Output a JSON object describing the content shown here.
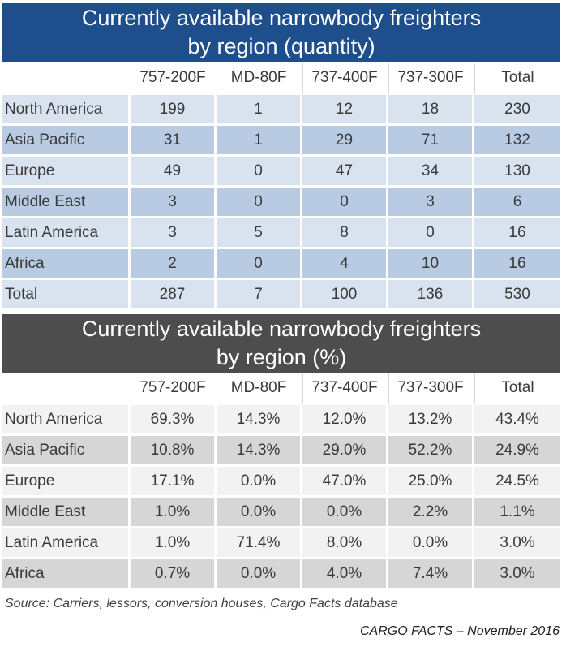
{
  "quantity": {
    "title_line1": "Currently available narrowbody freighters",
    "title_line2": "by region (quantity)",
    "columns": [
      "757-200F",
      "MD-80F",
      "737-400F",
      "737-300F",
      "Total"
    ],
    "rows": [
      {
        "region": "North America",
        "values": [
          "199",
          "1",
          "12",
          "18",
          "230"
        ]
      },
      {
        "region": "Asia Pacific",
        "values": [
          "31",
          "1",
          "29",
          "71",
          "132"
        ]
      },
      {
        "region": "Europe",
        "values": [
          "49",
          "0",
          "47",
          "34",
          "130"
        ]
      },
      {
        "region": "Middle East",
        "values": [
          "3",
          "0",
          "0",
          "3",
          "6"
        ]
      },
      {
        "region": "Latin America",
        "values": [
          "3",
          "5",
          "8",
          "0",
          "16"
        ]
      },
      {
        "region": "Africa",
        "values": [
          "2",
          "0",
          "4",
          "10",
          "16"
        ]
      },
      {
        "region": "Total",
        "values": [
          "287",
          "7",
          "100",
          "136",
          "530"
        ]
      }
    ]
  },
  "percent": {
    "title_line1": "Currently available narrowbody freighters",
    "title_line2": "by region (%)",
    "columns": [
      "757-200F",
      "MD-80F",
      "737-400F",
      "737-300F",
      "Total"
    ],
    "rows": [
      {
        "region": "North America",
        "values": [
          "69.3%",
          "14.3%",
          "12.0%",
          "13.2%",
          "43.4%"
        ]
      },
      {
        "region": "Asia Pacific",
        "values": [
          "10.8%",
          "14.3%",
          "29.0%",
          "52.2%",
          "24.9%"
        ]
      },
      {
        "region": "Europe",
        "values": [
          "17.1%",
          "0.0%",
          "47.0%",
          "25.0%",
          "24.5%"
        ]
      },
      {
        "region": "Middle East",
        "values": [
          "1.0%",
          "0.0%",
          "0.0%",
          "2.2%",
          "1.1%"
        ]
      },
      {
        "region": "Latin America",
        "values": [
          "1.0%",
          "71.4%",
          "8.0%",
          "0.0%",
          "3.0%"
        ]
      },
      {
        "region": "Africa",
        "values": [
          "0.7%",
          "0.0%",
          "4.0%",
          "7.4%",
          "3.0%"
        ]
      }
    ]
  },
  "source": "Source: Carriers, lessors, conversion houses, Cargo Facts database",
  "credit": "CARGO FACTS – November 2016",
  "colors": {
    "quantity_banner": "#1f4e8c",
    "quantity_row_light": "#d9e3f0",
    "quantity_row_dark": "#b8cbe3",
    "percent_banner": "#4d4d4d",
    "percent_row_light": "#f2f2f2",
    "percent_row_dark": "#d6d6d6"
  }
}
